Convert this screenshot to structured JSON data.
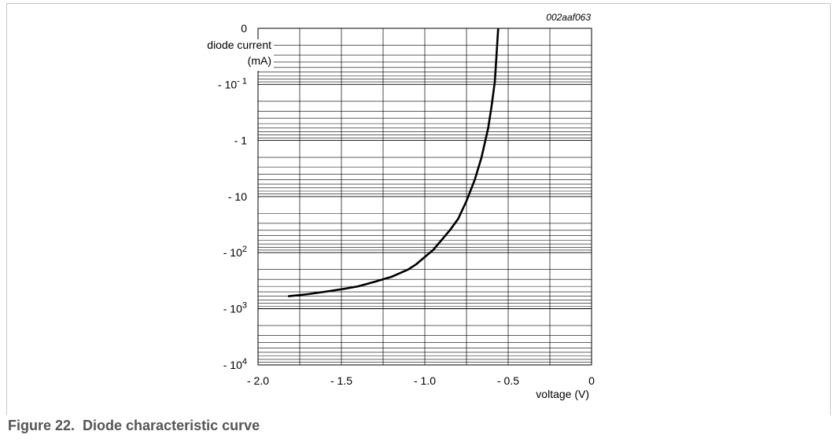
{
  "figure": {
    "code": "002aaf063",
    "caption": "Figure 22.  Diode characteristic curve"
  },
  "chart_data": {
    "type": "line",
    "title": "",
    "ylabel": [
      "diode current",
      "(mA)"
    ],
    "xlabel": "voltage (V)",
    "xlim": [
      -2.0,
      0
    ],
    "x_ticks": [
      -2.0,
      -1.5,
      -1.0,
      -0.5,
      0
    ],
    "x_tick_labels": [
      "- 2.0",
      "- 1.5",
      "- 1.0",
      "- 0.5",
      "0"
    ],
    "y_scale": "log (negative current)",
    "y_ticks": [
      0,
      -0.1,
      -1,
      -10,
      -100,
      -1000,
      -10000
    ],
    "y_tick_labels": [
      {
        "base": "0",
        "exp": ""
      },
      {
        "base": "- 10",
        "exp": "- 1"
      },
      {
        "base": "- 1",
        "exp": ""
      },
      {
        "base": "- 10",
        "exp": ""
      },
      {
        "base": "- 10",
        "exp": "2"
      },
      {
        "base": "- 10",
        "exp": "3"
      },
      {
        "base": "- 10",
        "exp": "4"
      }
    ],
    "grid": true,
    "series": [
      {
        "color": "#000000",
        "x": [
          -1.82,
          -1.7,
          -1.6,
          -1.5,
          -1.4,
          -1.3,
          -1.2,
          -1.1,
          -1.05,
          -1.0,
          -0.95,
          -0.9,
          -0.85,
          -0.8,
          -0.75,
          -0.7,
          -0.66,
          -0.62,
          -0.6,
          -0.58,
          -0.57,
          -0.56
        ],
        "y": [
          -600,
          -550,
          -500,
          -450,
          -400,
          -330,
          -270,
          -200,
          -160,
          -120,
          -90,
          -60,
          -40,
          -25,
          -12,
          -5,
          -2,
          -0.6,
          -0.25,
          -0.09,
          -0.03,
          0
        ]
      }
    ]
  }
}
